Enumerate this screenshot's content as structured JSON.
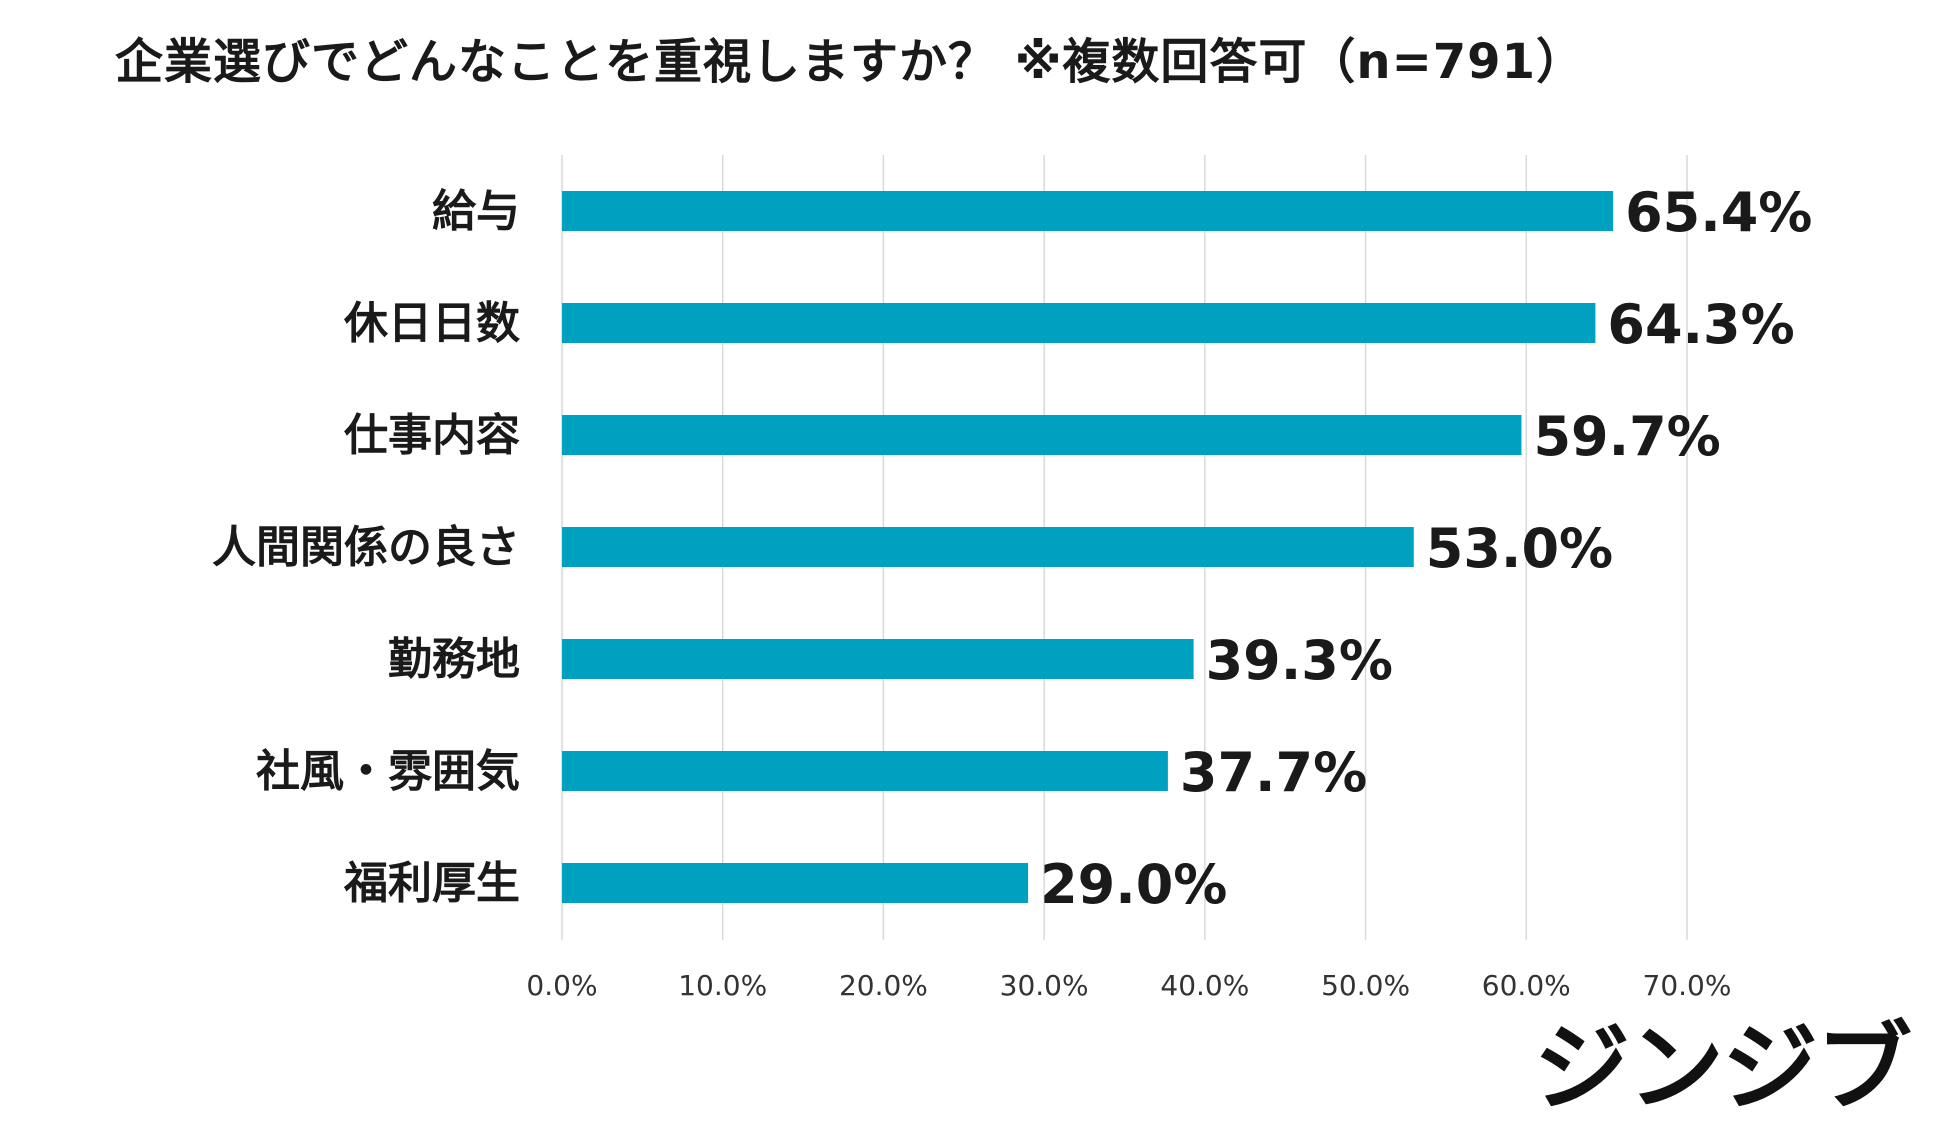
{
  "chart_data": {
    "type": "bar",
    "orientation": "horizontal",
    "title": "企業選びでどんなことを重視しますか？ ※複数回答可（n=791）",
    "categories": [
      "給与",
      "休日日数",
      "仕事内容",
      "人間関係の良さ",
      "勤務地",
      "社風・雰囲気",
      "福利厚生"
    ],
    "values": [
      65.4,
      64.3,
      59.7,
      53.0,
      39.3,
      37.7,
      29.0
    ],
    "value_labels": [
      "65.4%",
      "64.3%",
      "59.7%",
      "53.0%",
      "39.3%",
      "37.7%",
      "29.0%"
    ],
    "xticks": [
      0,
      10,
      20,
      30,
      40,
      50,
      60,
      70
    ],
    "xtick_labels": [
      "0.0%",
      "10.0%",
      "20.0%",
      "30.0%",
      "40.0%",
      "50.0%",
      "60.0%",
      "70.0%"
    ],
    "xlim": [
      0,
      70
    ],
    "xlabel": "",
    "ylabel": "",
    "grid": true,
    "bar_color": "#00A0C0",
    "grid_color": "#d9d9d9"
  },
  "logo_text": "ジンジブ"
}
